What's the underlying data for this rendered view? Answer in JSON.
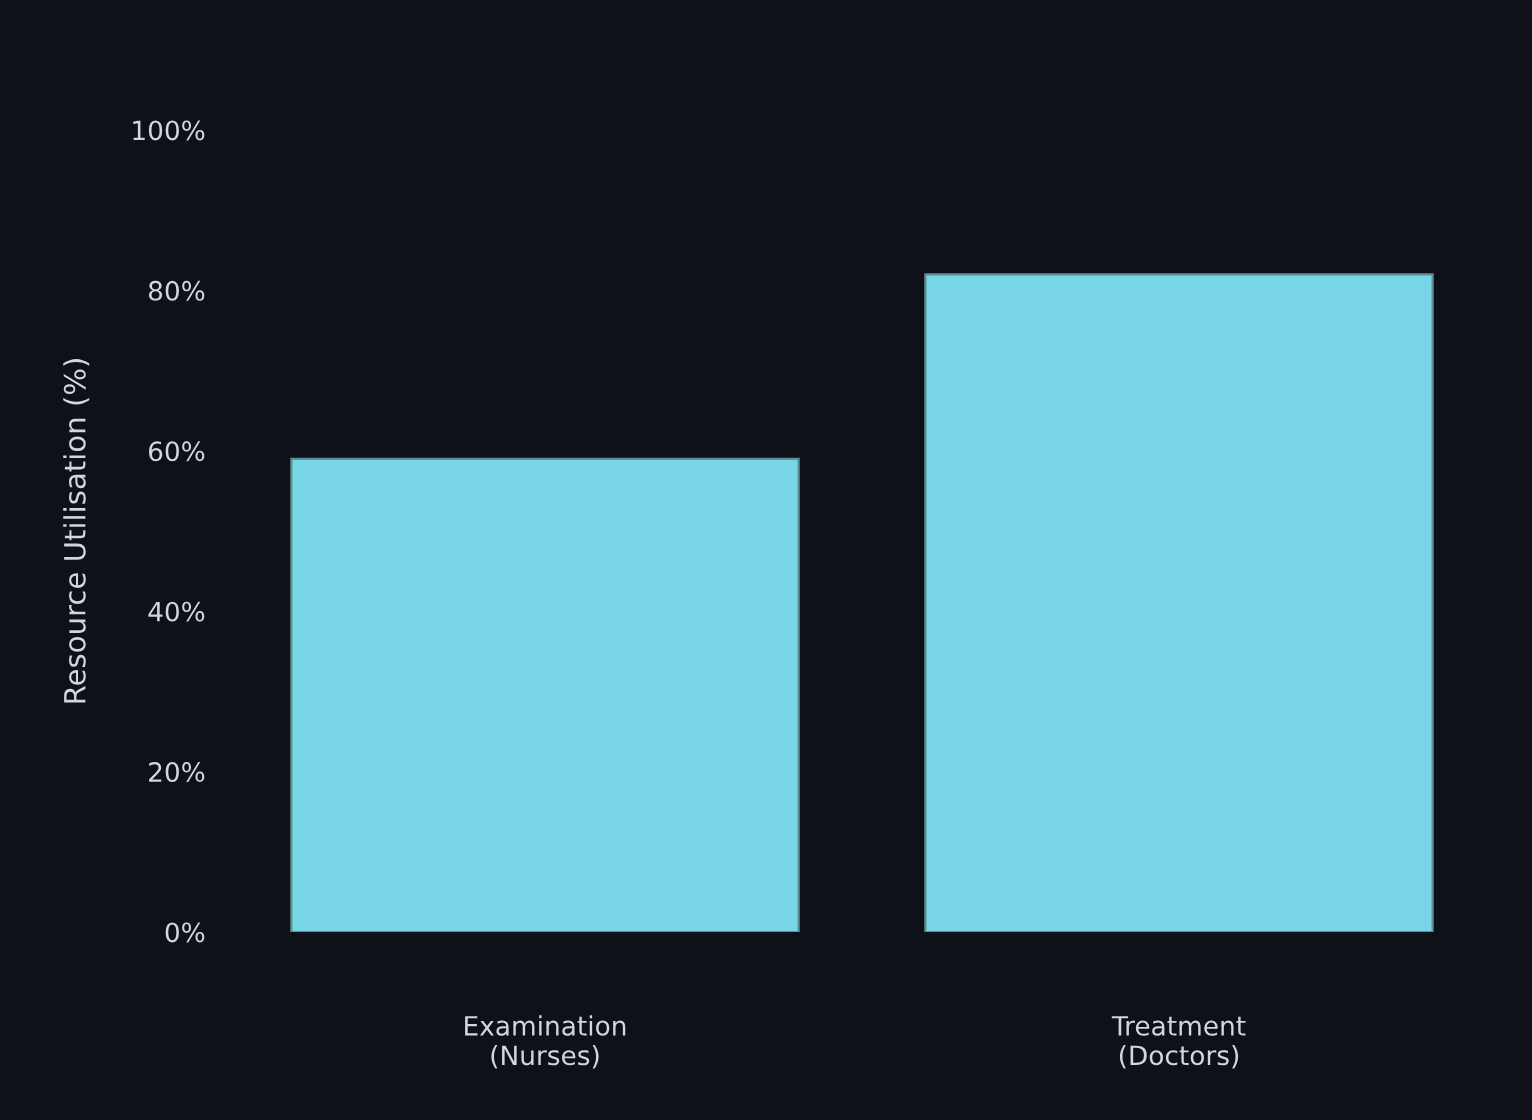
{
  "chart_data": {
    "type": "bar",
    "ylabel": "Resource Utilisation (%)",
    "categories": [
      "Examination\n(Nurses)",
      "Treatment\n(Doctors)"
    ],
    "series": [
      {
        "color": "#79d6e6",
        "values": [
          59,
          82
        ]
      }
    ],
    "ylim": [
      0,
      100
    ],
    "yticks": [
      {
        "value": 0,
        "label": "0%"
      },
      {
        "value": 20,
        "label": "20%"
      },
      {
        "value": 40,
        "label": "40%"
      },
      {
        "value": 60,
        "label": "60%"
      },
      {
        "value": 80,
        "label": "80%"
      },
      {
        "value": 100,
        "label": "100%"
      }
    ]
  }
}
